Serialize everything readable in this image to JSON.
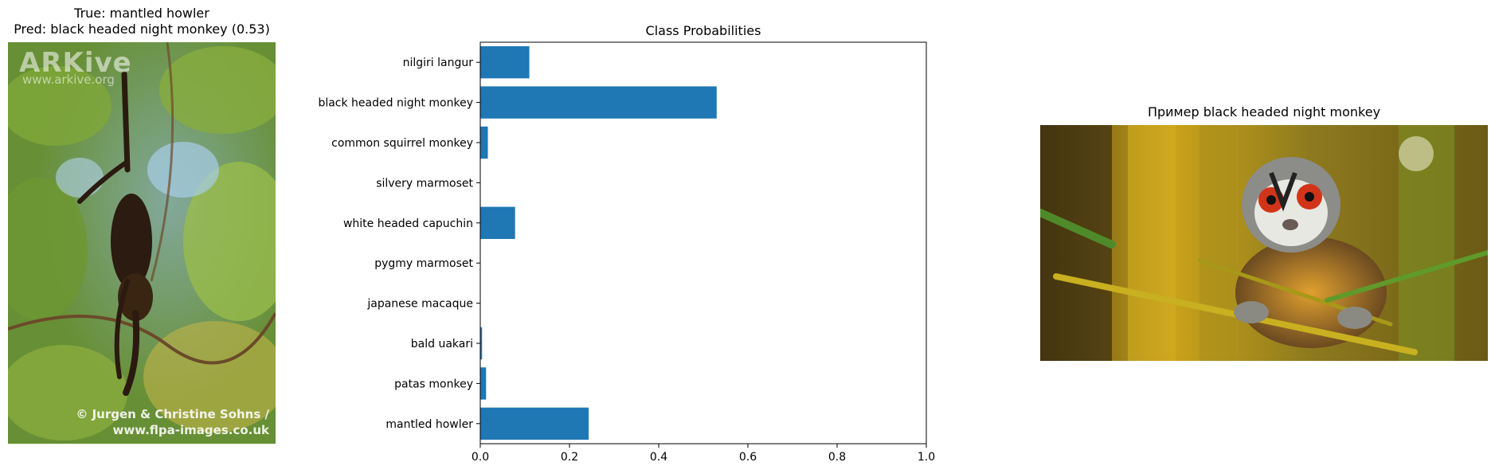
{
  "left_panel": {
    "title_line1": "True: mantled howler",
    "title_line2": "Pred: black headed night monkey (0.53)",
    "watermark_logo": "ARKive",
    "watermark_site": "www.arkive.org",
    "credit_line1": "© Jurgen & Christine Sohns /",
    "credit_line2": "www.flpa-images.co.uk"
  },
  "right_panel": {
    "title": "Пример black headed night monkey"
  },
  "chart_data": {
    "type": "bar",
    "orientation": "horizontal",
    "title": "Class Probabilities",
    "xlabel": "",
    "ylabel": "",
    "xlim": [
      0,
      1.0
    ],
    "xticks": [
      "0.0",
      "0.2",
      "0.4",
      "0.6",
      "0.8",
      "1.0"
    ],
    "categories": [
      "nilgiri langur",
      "black headed night monkey",
      "common squirrel monkey",
      "silvery marmoset",
      "white headed capuchin",
      "pygmy marmoset",
      "japanese macaque",
      "bald uakari",
      "patas monkey",
      "mantled howler"
    ],
    "values": [
      0.11,
      0.53,
      0.017,
      0.0,
      0.078,
      0.0,
      0.0,
      0.004,
      0.013,
      0.243
    ],
    "grid": false,
    "bar_color": "#1f77b4"
  }
}
